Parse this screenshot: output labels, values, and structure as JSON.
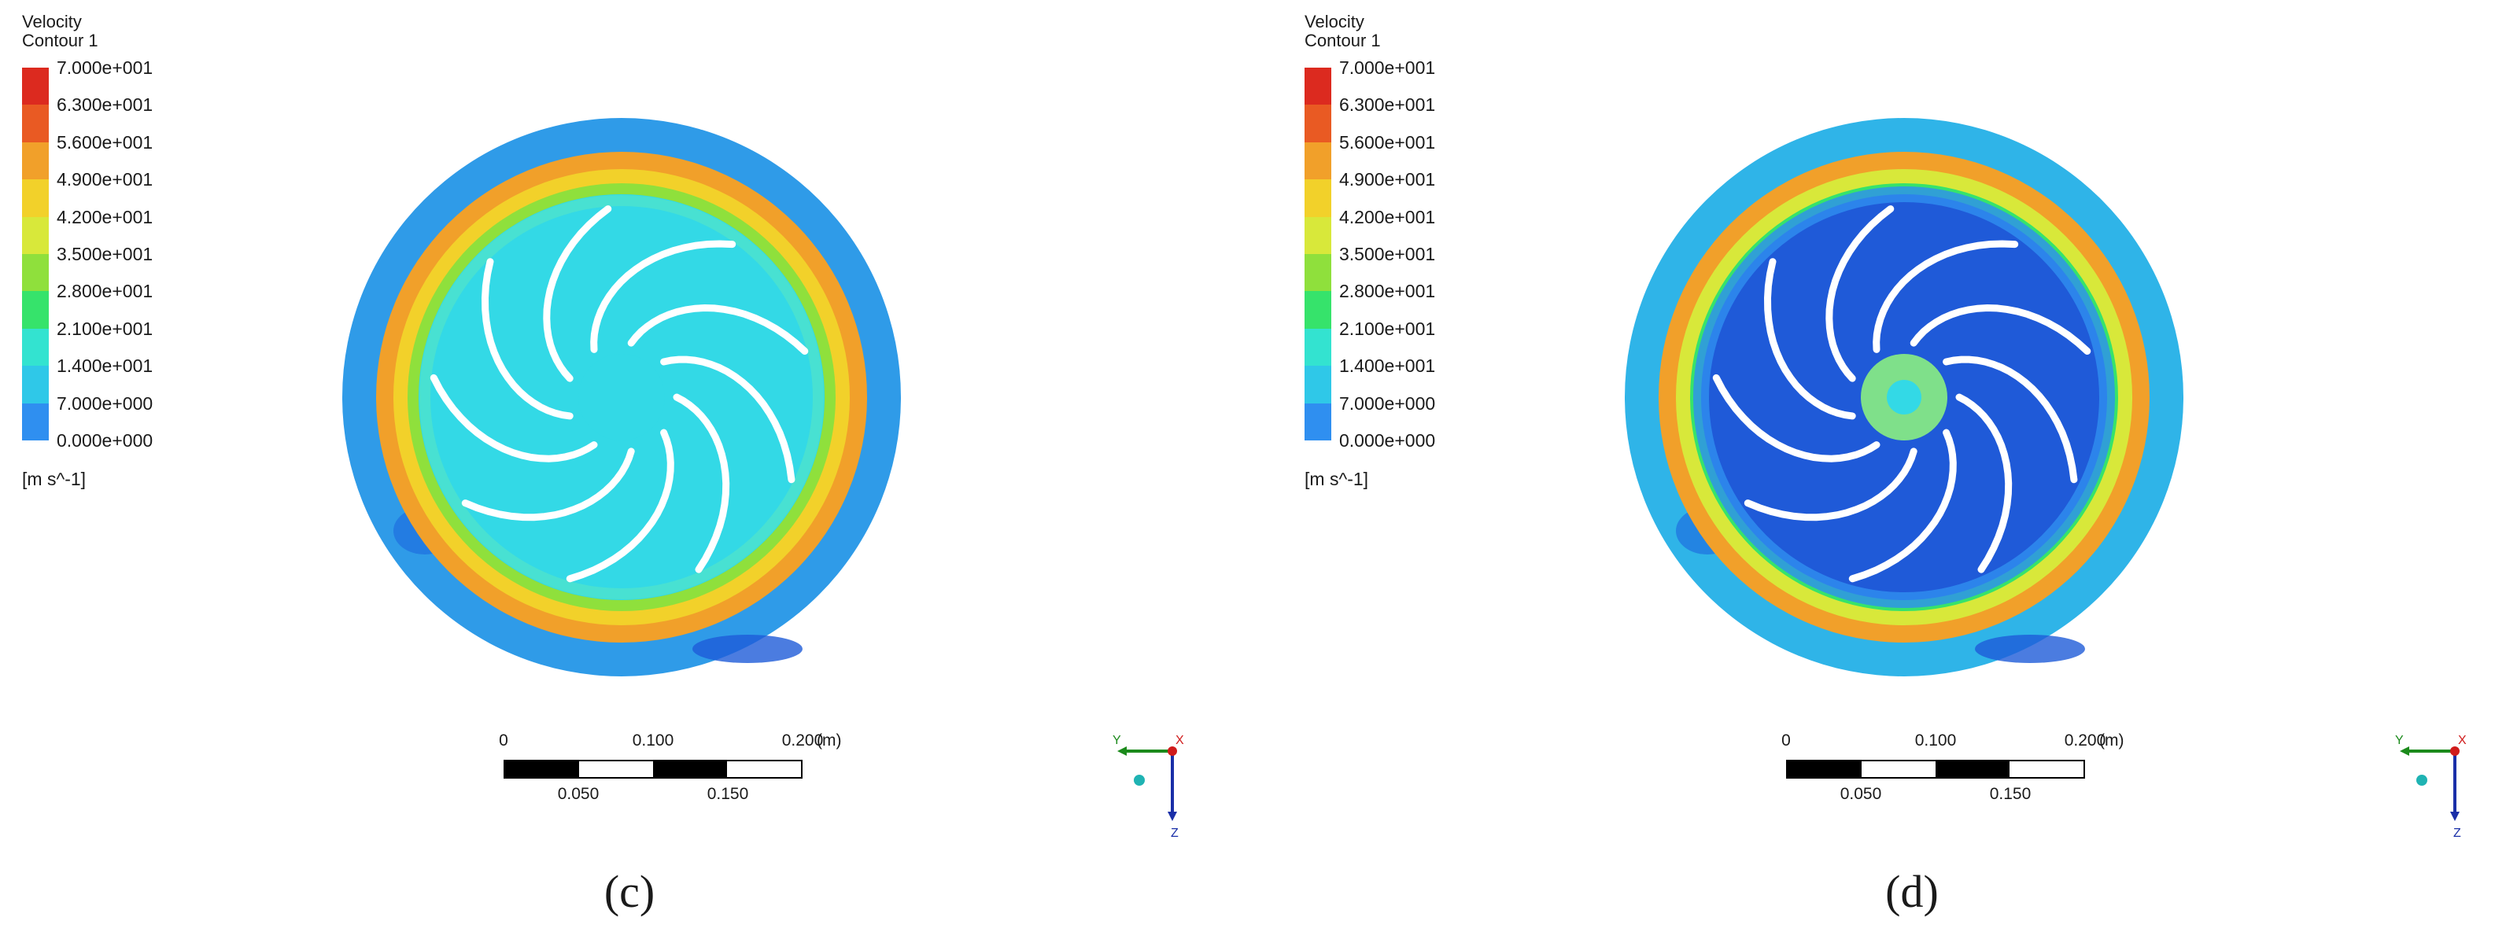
{
  "colors": {
    "scale": [
      "#1e4fd6",
      "#2f8ff0",
      "#2fc8e8",
      "#33e3d0",
      "#36e36b",
      "#8fe03c",
      "#d8e83a",
      "#f2d12a",
      "#f1a02a",
      "#e95a23",
      "#dc2a1f"
    ],
    "blade": "#ffffff"
  },
  "panels": [
    {
      "id": "c",
      "caption": "(c)",
      "legend": {
        "title_line1": "Velocity",
        "title_line2": "Contour 1",
        "ticks": [
          "7.000e+001",
          "6.300e+001",
          "5.600e+001",
          "4.900e+001",
          "4.200e+001",
          "3.500e+001",
          "2.800e+001",
          "2.100e+001",
          "1.400e+001",
          "7.000e+000",
          "0.000e+000"
        ],
        "unit": "[m s^-1]"
      },
      "scalebar": {
        "top_labels": [
          "0",
          "0.100",
          "0.200"
        ],
        "bottom_labels": [
          "0.050",
          "0.150"
        ],
        "unit": "(m)"
      },
      "axes": {
        "y": "Y",
        "x": "X",
        "z": "Z"
      },
      "field": {
        "inner_color": "#33d9e6",
        "ring_outer": "#f1a02a",
        "ring_mid": "#f2d12a",
        "ring_inner": "#8fe03c",
        "outer_band": "#2f9be8",
        "hub": "#33d9e6"
      }
    },
    {
      "id": "d",
      "caption": "(d)",
      "legend": {
        "title_line1": "Velocity",
        "title_line2": "Contour 1",
        "ticks": [
          "7.000e+001",
          "6.300e+001",
          "5.600e+001",
          "4.900e+001",
          "4.200e+001",
          "3.500e+001",
          "2.800e+001",
          "2.100e+001",
          "1.400e+001",
          "7.000e+000",
          "0.000e+000"
        ],
        "unit": "[m s^-1]"
      },
      "scalebar": {
        "top_labels": [
          "0",
          "0.100",
          "0.200"
        ],
        "bottom_labels": [
          "0.050",
          "0.150"
        ],
        "unit": "(m)"
      },
      "axes": {
        "y": "Y",
        "x": "X",
        "z": "Z"
      },
      "field": {
        "inner_color": "#1f5ad8",
        "ring_outer": "#f1a02a",
        "ring_mid": "#d8e83a",
        "ring_inner": "#36e36b",
        "outer_band": "#2fb4e8",
        "hub": "#7fe08a"
      }
    }
  ]
}
